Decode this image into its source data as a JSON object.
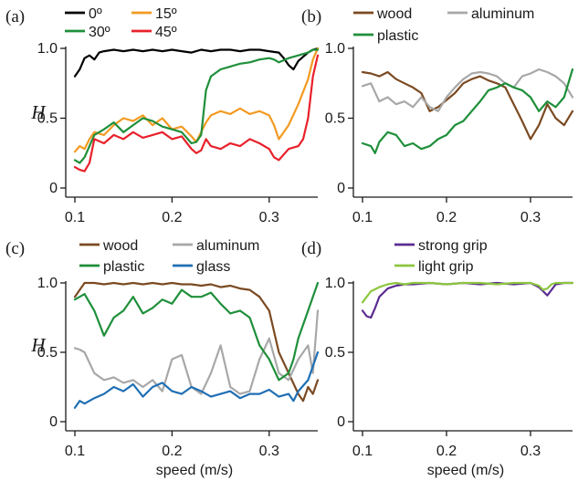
{
  "chart_data": [
    {
      "panel": "(a)",
      "type": "line",
      "ylabel": "H",
      "xlabel": "",
      "xlim": [
        0.1,
        0.35
      ],
      "ylim": [
        0,
        1.0
      ],
      "xticks": [
        "0.1",
        "0.2",
        "0.3"
      ],
      "yticks": [
        "0",
        "0.5",
        "1.0"
      ],
      "legend_position": "top",
      "series": [
        {
          "name": "0º",
          "color": "#000000",
          "x": [
            0.1,
            0.105,
            0.11,
            0.115,
            0.12,
            0.125,
            0.13,
            0.14,
            0.15,
            0.16,
            0.17,
            0.18,
            0.19,
            0.2,
            0.21,
            0.22,
            0.23,
            0.24,
            0.25,
            0.26,
            0.27,
            0.28,
            0.29,
            0.3,
            0.31,
            0.315,
            0.32,
            0.325,
            0.33,
            0.335,
            0.34,
            0.345,
            0.35
          ],
          "y": [
            0.8,
            0.85,
            0.93,
            0.95,
            0.92,
            0.97,
            0.98,
            0.99,
            0.98,
            0.99,
            0.98,
            0.99,
            0.98,
            0.99,
            0.98,
            0.97,
            0.99,
            0.98,
            0.99,
            0.99,
            0.98,
            0.99,
            0.99,
            0.98,
            0.97,
            0.93,
            0.88,
            0.85,
            0.91,
            0.94,
            0.97,
            0.99,
            1.0
          ]
        },
        {
          "name": "15º",
          "color": "#f39a22",
          "x": [
            0.1,
            0.105,
            0.11,
            0.115,
            0.12,
            0.13,
            0.14,
            0.15,
            0.16,
            0.17,
            0.18,
            0.19,
            0.2,
            0.21,
            0.22,
            0.225,
            0.23,
            0.235,
            0.24,
            0.25,
            0.26,
            0.27,
            0.28,
            0.29,
            0.3,
            0.305,
            0.31,
            0.32,
            0.33,
            0.34,
            0.345,
            0.35
          ],
          "y": [
            0.26,
            0.3,
            0.28,
            0.35,
            0.4,
            0.38,
            0.45,
            0.5,
            0.48,
            0.52,
            0.45,
            0.5,
            0.42,
            0.44,
            0.37,
            0.33,
            0.4,
            0.47,
            0.52,
            0.55,
            0.53,
            0.57,
            0.53,
            0.55,
            0.52,
            0.45,
            0.35,
            0.45,
            0.6,
            0.78,
            0.92,
            1.0
          ]
        },
        {
          "name": "30º",
          "color": "#1f8f3a",
          "x": [
            0.1,
            0.105,
            0.11,
            0.115,
            0.12,
            0.13,
            0.14,
            0.15,
            0.16,
            0.17,
            0.18,
            0.19,
            0.2,
            0.21,
            0.22,
            0.225,
            0.23,
            0.235,
            0.24,
            0.25,
            0.26,
            0.27,
            0.28,
            0.29,
            0.3,
            0.305,
            0.31,
            0.32,
            0.33,
            0.34,
            0.345,
            0.35
          ],
          "y": [
            0.2,
            0.18,
            0.22,
            0.3,
            0.38,
            0.42,
            0.47,
            0.4,
            0.45,
            0.5,
            0.48,
            0.44,
            0.42,
            0.4,
            0.32,
            0.33,
            0.38,
            0.7,
            0.8,
            0.85,
            0.87,
            0.89,
            0.9,
            0.92,
            0.93,
            0.92,
            0.9,
            0.93,
            0.95,
            0.97,
            0.99,
            0.99
          ]
        },
        {
          "name": "45º",
          "color": "#e8212b",
          "x": [
            0.1,
            0.105,
            0.11,
            0.115,
            0.12,
            0.13,
            0.14,
            0.15,
            0.16,
            0.17,
            0.18,
            0.19,
            0.2,
            0.21,
            0.22,
            0.225,
            0.23,
            0.235,
            0.24,
            0.25,
            0.26,
            0.27,
            0.28,
            0.29,
            0.3,
            0.305,
            0.31,
            0.32,
            0.33,
            0.335,
            0.34,
            0.345,
            0.35
          ],
          "y": [
            0.15,
            0.13,
            0.12,
            0.18,
            0.35,
            0.32,
            0.38,
            0.35,
            0.4,
            0.36,
            0.38,
            0.4,
            0.35,
            0.37,
            0.28,
            0.25,
            0.27,
            0.35,
            0.3,
            0.28,
            0.32,
            0.3,
            0.35,
            0.32,
            0.28,
            0.22,
            0.2,
            0.28,
            0.3,
            0.35,
            0.5,
            0.8,
            0.95
          ]
        }
      ]
    },
    {
      "panel": "(b)",
      "type": "line",
      "ylabel": "",
      "xlabel": "",
      "xlim": [
        0.1,
        0.35
      ],
      "ylim": [
        0,
        1.0
      ],
      "xticks": [
        "0.1",
        "0.2",
        "0.3"
      ],
      "yticks": [
        "0",
        "0.5",
        "1.0"
      ],
      "legend_position": "top",
      "series": [
        {
          "name": "wood",
          "color": "#7b4a22",
          "x": [
            0.1,
            0.11,
            0.12,
            0.13,
            0.14,
            0.15,
            0.16,
            0.17,
            0.18,
            0.19,
            0.2,
            0.21,
            0.22,
            0.23,
            0.24,
            0.25,
            0.26,
            0.27,
            0.28,
            0.29,
            0.3,
            0.31,
            0.32,
            0.33,
            0.34,
            0.35
          ],
          "y": [
            0.83,
            0.82,
            0.8,
            0.83,
            0.78,
            0.75,
            0.72,
            0.68,
            0.55,
            0.58,
            0.63,
            0.68,
            0.75,
            0.78,
            0.8,
            0.77,
            0.75,
            0.72,
            0.6,
            0.48,
            0.35,
            0.45,
            0.6,
            0.5,
            0.45,
            0.55
          ]
        },
        {
          "name": "aluminum",
          "color": "#a8a8a8",
          "x": [
            0.1,
            0.11,
            0.12,
            0.13,
            0.14,
            0.15,
            0.16,
            0.17,
            0.18,
            0.19,
            0.2,
            0.21,
            0.22,
            0.23,
            0.24,
            0.25,
            0.26,
            0.27,
            0.28,
            0.29,
            0.3,
            0.31,
            0.32,
            0.33,
            0.34,
            0.35
          ],
          "y": [
            0.73,
            0.75,
            0.62,
            0.65,
            0.6,
            0.62,
            0.58,
            0.65,
            0.58,
            0.55,
            0.65,
            0.72,
            0.78,
            0.82,
            0.83,
            0.82,
            0.8,
            0.75,
            0.72,
            0.8,
            0.82,
            0.85,
            0.83,
            0.8,
            0.75,
            0.65
          ]
        },
        {
          "name": "plastic",
          "color": "#1f8f3a",
          "x": [
            0.1,
            0.11,
            0.115,
            0.12,
            0.13,
            0.14,
            0.15,
            0.16,
            0.17,
            0.18,
            0.19,
            0.2,
            0.21,
            0.22,
            0.23,
            0.24,
            0.25,
            0.26,
            0.27,
            0.28,
            0.29,
            0.3,
            0.31,
            0.32,
            0.33,
            0.34,
            0.35
          ],
          "y": [
            0.32,
            0.3,
            0.25,
            0.33,
            0.4,
            0.38,
            0.3,
            0.32,
            0.28,
            0.3,
            0.35,
            0.38,
            0.45,
            0.48,
            0.55,
            0.62,
            0.7,
            0.72,
            0.75,
            0.72,
            0.7,
            0.65,
            0.55,
            0.62,
            0.58,
            0.65,
            0.85
          ]
        }
      ]
    },
    {
      "panel": "(c)",
      "type": "line",
      "ylabel": "H",
      "xlabel": "speed (m/s)",
      "xlim": [
        0.1,
        0.35
      ],
      "ylim": [
        0,
        1.0
      ],
      "xticks": [
        "0.1",
        "0.2",
        "0.3"
      ],
      "yticks": [
        "0",
        "0.5",
        "1.0"
      ],
      "legend_position": "top",
      "series": [
        {
          "name": "wood",
          "color": "#7b4a22",
          "x": [
            0.1,
            0.105,
            0.11,
            0.12,
            0.13,
            0.14,
            0.15,
            0.16,
            0.17,
            0.18,
            0.19,
            0.2,
            0.21,
            0.22,
            0.23,
            0.24,
            0.25,
            0.26,
            0.27,
            0.28,
            0.29,
            0.3,
            0.31,
            0.32,
            0.33,
            0.335,
            0.34,
            0.345,
            0.35
          ],
          "y": [
            0.9,
            0.95,
            1.0,
            1.0,
            0.99,
            1.0,
            0.99,
            1.0,
            0.99,
            1.0,
            0.99,
            1.0,
            0.99,
            0.99,
            0.98,
            0.99,
            0.97,
            0.98,
            0.96,
            0.95,
            0.9,
            0.8,
            0.5,
            0.35,
            0.2,
            0.15,
            0.25,
            0.2,
            0.3
          ]
        },
        {
          "name": "aluminum",
          "color": "#a8a8a8",
          "x": [
            0.1,
            0.105,
            0.11,
            0.12,
            0.13,
            0.14,
            0.15,
            0.16,
            0.17,
            0.18,
            0.19,
            0.2,
            0.21,
            0.22,
            0.23,
            0.24,
            0.25,
            0.26,
            0.27,
            0.28,
            0.29,
            0.3,
            0.31,
            0.32,
            0.33,
            0.34,
            0.345,
            0.35
          ],
          "y": [
            0.53,
            0.52,
            0.5,
            0.35,
            0.3,
            0.32,
            0.28,
            0.3,
            0.25,
            0.3,
            0.22,
            0.45,
            0.48,
            0.25,
            0.2,
            0.35,
            0.55,
            0.25,
            0.2,
            0.22,
            0.45,
            0.6,
            0.35,
            0.3,
            0.45,
            0.55,
            0.35,
            0.8
          ]
        },
        {
          "name": "plastic",
          "color": "#1f8f3a",
          "x": [
            0.1,
            0.105,
            0.11,
            0.12,
            0.13,
            0.14,
            0.15,
            0.16,
            0.17,
            0.18,
            0.19,
            0.2,
            0.21,
            0.22,
            0.23,
            0.24,
            0.25,
            0.26,
            0.27,
            0.28,
            0.29,
            0.3,
            0.31,
            0.32,
            0.325,
            0.33,
            0.34,
            0.35
          ],
          "y": [
            0.88,
            0.9,
            0.92,
            0.8,
            0.62,
            0.75,
            0.8,
            0.9,
            0.78,
            0.82,
            0.88,
            0.85,
            0.95,
            0.9,
            0.9,
            0.93,
            0.85,
            0.78,
            0.8,
            0.75,
            0.55,
            0.45,
            0.3,
            0.35,
            0.45,
            0.6,
            0.8,
            1.0
          ]
        },
        {
          "name": "glass",
          "color": "#1f6fb4",
          "x": [
            0.1,
            0.105,
            0.11,
            0.12,
            0.13,
            0.14,
            0.15,
            0.16,
            0.17,
            0.18,
            0.19,
            0.2,
            0.21,
            0.22,
            0.23,
            0.24,
            0.25,
            0.26,
            0.27,
            0.28,
            0.29,
            0.3,
            0.31,
            0.32,
            0.325,
            0.33,
            0.34,
            0.35
          ],
          "y": [
            0.1,
            0.15,
            0.13,
            0.17,
            0.2,
            0.25,
            0.22,
            0.27,
            0.18,
            0.25,
            0.28,
            0.22,
            0.2,
            0.25,
            0.22,
            0.18,
            0.2,
            0.22,
            0.17,
            0.2,
            0.2,
            0.23,
            0.18,
            0.2,
            0.15,
            0.22,
            0.3,
            0.5
          ]
        }
      ]
    },
    {
      "panel": "(d)",
      "type": "line",
      "ylabel": "",
      "xlabel": "speed (m/s)",
      "xlim": [
        0.1,
        0.35
      ],
      "ylim": [
        0,
        1.0
      ],
      "xticks": [
        "0.1",
        "0.2",
        "0.3"
      ],
      "yticks": [
        "0",
        "0.5",
        "1.0"
      ],
      "legend_position": "top",
      "series": [
        {
          "name": "strong grip",
          "color": "#5b2c91",
          "x": [
            0.1,
            0.105,
            0.11,
            0.115,
            0.12,
            0.13,
            0.14,
            0.15,
            0.16,
            0.18,
            0.2,
            0.22,
            0.24,
            0.26,
            0.28,
            0.3,
            0.31,
            0.315,
            0.32,
            0.325,
            0.33,
            0.34,
            0.35
          ],
          "y": [
            0.8,
            0.76,
            0.75,
            0.82,
            0.9,
            0.96,
            0.98,
            0.99,
            0.99,
            1.0,
            0.99,
            1.0,
            0.99,
            1.0,
            0.99,
            1.0,
            0.97,
            0.94,
            0.91,
            0.95,
            0.99,
            1.0,
            1.0
          ]
        },
        {
          "name": "light grip",
          "color": "#8dc63f",
          "x": [
            0.1,
            0.105,
            0.11,
            0.12,
            0.13,
            0.14,
            0.15,
            0.16,
            0.18,
            0.2,
            0.22,
            0.24,
            0.26,
            0.28,
            0.3,
            0.31,
            0.315,
            0.32,
            0.325,
            0.33,
            0.34,
            0.35
          ],
          "y": [
            0.86,
            0.9,
            0.94,
            0.97,
            0.99,
            1.0,
            0.99,
            1.0,
            1.0,
            0.99,
            1.0,
            1.0,
            0.99,
            1.0,
            1.0,
            0.98,
            0.95,
            0.96,
            0.99,
            1.0,
            1.0,
            1.0
          ]
        }
      ]
    }
  ]
}
